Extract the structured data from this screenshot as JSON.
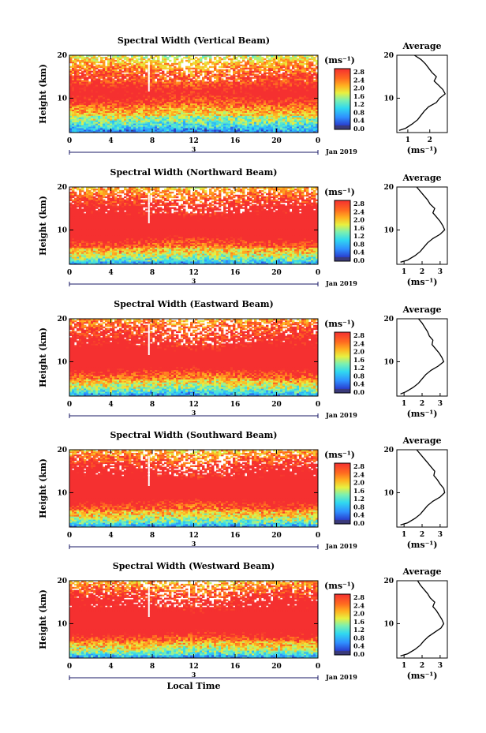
{
  "chart_data": [
    {
      "type": "heatmap",
      "title": "Spectral Width (Vertical Beam)",
      "ylabel": "Height (km)",
      "x_ticks": [
        "0",
        "4",
        "8",
        "12",
        "16",
        "20",
        "0"
      ],
      "xlim": [
        0,
        24
      ],
      "y_ticks": [
        "20",
        "10"
      ],
      "ylim": [
        2,
        20
      ],
      "date_marker": "3",
      "date_label": "Jan 2019",
      "colorbar": {
        "unit": "(ms⁻¹)",
        "ticks": [
          "2.8",
          "2.4",
          "2.0",
          "1.6",
          "1.2",
          "0.8",
          "0.4",
          "0.0"
        ],
        "range": [
          0,
          3.0
        ]
      },
      "average_profile": {
        "title": "Average",
        "xlabel": "(ms⁻¹)",
        "x_ticks": [
          "1",
          "2"
        ],
        "xlim": [
          0.5,
          2.8
        ],
        "height_km": [
          2.5,
          3,
          4,
          5,
          6,
          7,
          8,
          9,
          10,
          11,
          12,
          13,
          14,
          15,
          16,
          17,
          18,
          19,
          20
        ],
        "values": [
          0.6,
          0.9,
          1.2,
          1.45,
          1.6,
          1.75,
          1.95,
          2.3,
          2.45,
          2.7,
          2.6,
          2.4,
          2.2,
          2.3,
          2.1,
          1.95,
          1.8,
          1.6,
          1.3
        ]
      }
    },
    {
      "type": "heatmap",
      "title": "Spectral Width (Northward Beam)",
      "ylabel": "Height (km)",
      "x_ticks": [
        "0",
        "4",
        "8",
        "12",
        "16",
        "20",
        "0"
      ],
      "xlim": [
        0,
        24
      ],
      "y_ticks": [
        "20",
        "10"
      ],
      "ylim": [
        2,
        20
      ],
      "date_marker": "3",
      "date_label": "Jan 2019",
      "colorbar": {
        "unit": "(ms⁻¹)",
        "ticks": [
          "2.8",
          "2.4",
          "2.0",
          "1.6",
          "1.2",
          "0.8",
          "0.4",
          "0.0"
        ],
        "range": [
          0,
          3.0
        ]
      },
      "average_profile": {
        "title": "Average",
        "xlabel": "(ms⁻¹)",
        "x_ticks": [
          "1",
          "2",
          "3"
        ],
        "xlim": [
          0.6,
          3.4
        ],
        "height_km": [
          2.5,
          3,
          4,
          5,
          6,
          7,
          8,
          9,
          10,
          11,
          12,
          13,
          14,
          15,
          16,
          17,
          18,
          19,
          20
        ],
        "values": [
          0.8,
          1.2,
          1.6,
          1.9,
          2.1,
          2.3,
          2.6,
          3.0,
          3.25,
          3.15,
          3.0,
          2.8,
          2.6,
          2.7,
          2.45,
          2.3,
          2.1,
          1.9,
          1.7
        ]
      }
    },
    {
      "type": "heatmap",
      "title": "Spectral Width (Eastward Beam)",
      "ylabel": "Height (km)",
      "x_ticks": [
        "0",
        "4",
        "8",
        "12",
        "16",
        "20",
        "0"
      ],
      "xlim": [
        0,
        24
      ],
      "y_ticks": [
        "20",
        "10"
      ],
      "ylim": [
        2,
        20
      ],
      "date_marker": "3",
      "date_label": "Jan 2019",
      "colorbar": {
        "unit": "(ms⁻¹)",
        "ticks": [
          "2.8",
          "2.4",
          "2.0",
          "1.6",
          "1.2",
          "0.8",
          "0.4",
          "0.0"
        ],
        "range": [
          0,
          3.0
        ]
      },
      "average_profile": {
        "title": "Average",
        "xlabel": "(ms⁻¹)",
        "x_ticks": [
          "1",
          "2",
          "3"
        ],
        "xlim": [
          0.6,
          3.4
        ],
        "height_km": [
          2.5,
          3,
          4,
          5,
          6,
          7,
          8,
          9,
          10,
          11,
          12,
          13,
          14,
          15,
          16,
          17,
          18,
          19,
          20
        ],
        "values": [
          0.8,
          1.1,
          1.5,
          1.8,
          2.0,
          2.2,
          2.5,
          2.9,
          3.2,
          3.1,
          2.95,
          2.75,
          2.55,
          2.6,
          2.4,
          2.3,
          2.15,
          2.0,
          1.8
        ]
      }
    },
    {
      "type": "heatmap",
      "title": "Spectral Width (Southward Beam)",
      "ylabel": "Height (km)",
      "x_ticks": [
        "0",
        "4",
        "8",
        "12",
        "16",
        "20",
        "0"
      ],
      "xlim": [
        0,
        24
      ],
      "y_ticks": [
        "20",
        "10"
      ],
      "ylim": [
        2,
        20
      ],
      "date_marker": "3",
      "date_label": "Jan 2019",
      "colorbar": {
        "unit": "(ms⁻¹)",
        "ticks": [
          "2.8",
          "2.4",
          "2.0",
          "1.6",
          "1.2",
          "0.8",
          "0.4",
          "0.0"
        ],
        "range": [
          0,
          3.0
        ]
      },
      "average_profile": {
        "title": "Average",
        "xlabel": "(ms⁻¹)",
        "x_ticks": [
          "1",
          "2",
          "3"
        ],
        "xlim": [
          0.6,
          3.4
        ],
        "height_km": [
          2.5,
          3,
          4,
          5,
          6,
          7,
          8,
          9,
          10,
          11,
          12,
          13,
          14,
          15,
          16,
          17,
          18,
          19,
          20
        ],
        "values": [
          0.8,
          1.2,
          1.6,
          1.9,
          2.1,
          2.3,
          2.6,
          3.0,
          3.25,
          3.2,
          3.0,
          2.85,
          2.65,
          2.7,
          2.5,
          2.3,
          2.1,
          1.9,
          1.7
        ]
      }
    },
    {
      "type": "heatmap",
      "title": "Spectral Width (Westward Beam)",
      "ylabel": "Height (km)",
      "x_ticks": [
        "0",
        "4",
        "8",
        "12",
        "16",
        "20",
        "0"
      ],
      "xlim": [
        0,
        24
      ],
      "y_ticks": [
        "20",
        "10"
      ],
      "ylim": [
        2,
        20
      ],
      "date_marker": "3",
      "date_label": "Jan 2019",
      "xlabel": "Local Time",
      "colorbar": {
        "unit": "(ms⁻¹)",
        "ticks": [
          "2.8",
          "2.4",
          "2.0",
          "1.6",
          "1.2",
          "0.8",
          "0.4",
          "0.0"
        ],
        "range": [
          0,
          3.0
        ]
      },
      "average_profile": {
        "title": "Average",
        "xlabel": "(ms⁻¹)",
        "x_ticks": [
          "1",
          "2",
          "3"
        ],
        "xlim": [
          0.6,
          3.4
        ],
        "height_km": [
          2.5,
          3,
          4,
          5,
          6,
          7,
          8,
          9,
          10,
          11,
          12,
          13,
          14,
          15,
          16,
          17,
          18,
          19,
          20
        ],
        "values": [
          0.8,
          1.2,
          1.6,
          1.9,
          2.1,
          2.35,
          2.7,
          3.05,
          3.2,
          3.1,
          2.95,
          2.8,
          2.6,
          2.7,
          2.45,
          2.3,
          2.1,
          1.9,
          1.75
        ]
      }
    }
  ]
}
